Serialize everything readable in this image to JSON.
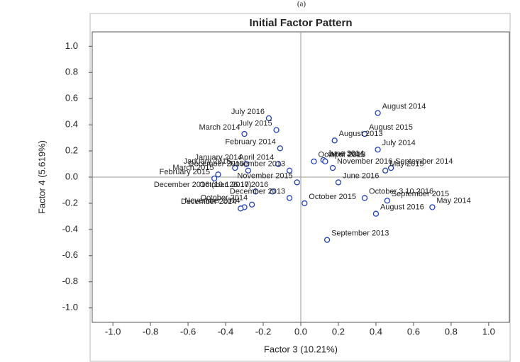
{
  "chart_data": {
    "type": "scatter",
    "caption": "(a)",
    "title": "Initial Factor Pattern",
    "x_label": "Factor 3 (10.21%)",
    "y_label": "Factor 4 (5.619%)",
    "xlim": [
      -1.11,
      1.11
    ],
    "ylim": [
      -1.11,
      1.11
    ],
    "xticks": [
      {
        "value": -1,
        "label": "-1.0"
      },
      -0.8,
      -0.6,
      -0.4,
      -0.2,
      {
        "value": 0,
        "label": "0.0"
      },
      0.2,
      0.4,
      0.6,
      0.8,
      {
        "value": 1,
        "label": "1.0"
      }
    ],
    "yticks": [
      {
        "value": -1,
        "label": "-1.0"
      },
      -0.8,
      -0.6,
      -0.4,
      -0.2,
      {
        "value": 0,
        "label": "0.0"
      },
      0.2,
      0.4,
      0.6,
      0.8,
      {
        "value": 1,
        "label": "1.0"
      }
    ],
    "reference_lines": true,
    "color": "#1f3fbf",
    "labels": [
      "August 2014",
      "July 2016",
      "July 2015",
      "March 2014",
      "August 2015",
      "August 2013",
      "February 2014",
      "July 2014",
      "April 2014",
      "June 2014",
      "January 2014",
      "October 2013",
      "April 2015",
      "September 2014",
      "May 2015",
      "January 2015",
      "November 2013",
      "November 2016",
      "March 2015",
      "February 2015",
      "December 2015",
      "November 2015",
      "June 2016",
      "October 26.10.2016",
      "October 3.10.2016",
      "December 2016 (10.1.2017)",
      "December 2013",
      "September 2015",
      "October 2015",
      "October 2014",
      "May 2014",
      "November 2014",
      "December 2014",
      "August 2016",
      "September 2013"
    ],
    "x": [
      0.41,
      -0.17,
      -0.13,
      -0.3,
      0.34,
      0.18,
      -0.11,
      0.41,
      -0.12,
      0.12,
      -0.29,
      0.07,
      0.13,
      0.48,
      0.45,
      -0.35,
      -0.06,
      0.17,
      -0.44,
      -0.46,
      -0.28,
      -0.02,
      0.2,
      -0.15,
      0.34,
      -0.24,
      -0.06,
      0.46,
      0.02,
      -0.26,
      0.7,
      -0.3,
      -0.32,
      0.4,
      0.14
    ],
    "y": [
      0.49,
      0.45,
      0.36,
      0.33,
      0.33,
      0.28,
      0.22,
      0.21,
      0.1,
      0.13,
      0.1,
      0.12,
      0.12,
      0.07,
      0.05,
      0.07,
      0.05,
      0.07,
      0.02,
      -0.01,
      0.05,
      -0.04,
      -0.04,
      -0.11,
      -0.16,
      -0.11,
      -0.16,
      -0.18,
      -0.2,
      -0.21,
      -0.23,
      -0.23,
      -0.24,
      -0.28,
      -0.48
    ]
  }
}
